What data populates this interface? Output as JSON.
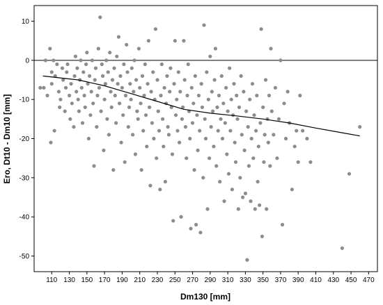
{
  "chart_data": {
    "type": "scatter",
    "xlabel": "Dm130 [mm]",
    "ylabel": "Ero, Dt10 - Dm10 [mm]",
    "xlim": [
      90,
      480
    ],
    "ylim": [
      -54,
      14
    ],
    "x_ticks": [
      110,
      130,
      150,
      170,
      190,
      210,
      230,
      250,
      270,
      290,
      310,
      330,
      350,
      370,
      390,
      410,
      430,
      450,
      470
    ],
    "x_tick_labels": [
      "110",
      "130",
      "150",
      "170",
      "190",
      "210",
      "230",
      "250",
      "270",
      "290",
      "310",
      "330",
      "350",
      "370",
      "390",
      "410",
      "430",
      "450",
      "470"
    ],
    "y_ticks": [
      10,
      0,
      -10,
      -20,
      -30,
      -40,
      -50
    ],
    "y_tick_labels": [
      "10",
      "0",
      "-10",
      "-20",
      "-30",
      "-40",
      "-50"
    ],
    "reference_line_y": 0,
    "grid": false,
    "legend": "none",
    "colors": {
      "points": "#8c8c8c",
      "trend": "#000000",
      "axes": "#000000"
    },
    "trend_line": {
      "x": [
        100,
        140,
        170,
        200,
        230,
        260,
        290,
        320,
        350,
        380,
        410,
        440,
        460
      ],
      "y": [
        -4,
        -5,
        -6.5,
        -8.5,
        -10.5,
        -12.5,
        -13.5,
        -14.2,
        -15,
        -16,
        -17.3,
        -18.5,
        -19.3
      ]
    },
    "points": [
      [
        97,
        -7
      ],
      [
        101,
        -7
      ],
      [
        103,
        0
      ],
      [
        105,
        -9
      ],
      [
        108,
        3
      ],
      [
        109,
        -21
      ],
      [
        110,
        -6
      ],
      [
        110,
        -3
      ],
      [
        112,
        0
      ],
      [
        113,
        -18
      ],
      [
        114,
        -4
      ],
      [
        116,
        -1
      ],
      [
        118,
        -8
      ],
      [
        119,
        -12
      ],
      [
        120,
        -10
      ],
      [
        122,
        -2
      ],
      [
        123,
        -5
      ],
      [
        125,
        -13
      ],
      [
        126,
        -7
      ],
      [
        127,
        -3
      ],
      [
        128,
        -1
      ],
      [
        130,
        -9
      ],
      [
        131,
        -15
      ],
      [
        132,
        -6
      ],
      [
        133,
        -11
      ],
      [
        135,
        -17
      ],
      [
        136,
        -4
      ],
      [
        137,
        1
      ],
      [
        138,
        -8
      ],
      [
        139,
        -2
      ],
      [
        140,
        -10
      ],
      [
        141,
        -13
      ],
      [
        142,
        -5
      ],
      [
        143,
        0
      ],
      [
        144,
        -7
      ],
      [
        145,
        -16
      ],
      [
        146,
        -3
      ],
      [
        147,
        -9
      ],
      [
        148,
        -12
      ],
      [
        149,
        -1
      ],
      [
        150,
        2
      ],
      [
        151,
        -6
      ],
      [
        152,
        -20
      ],
      [
        153,
        -4
      ],
      [
        154,
        -14
      ],
      [
        155,
        -8
      ],
      [
        156,
        0
      ],
      [
        157,
        -11
      ],
      [
        158,
        -27
      ],
      [
        159,
        -5
      ],
      [
        160,
        -2
      ],
      [
        161,
        -17
      ],
      [
        162,
        -9
      ],
      [
        163,
        3
      ],
      [
        164,
        -7
      ],
      [
        165,
        11
      ],
      [
        166,
        -13
      ],
      [
        167,
        -1
      ],
      [
        168,
        -4
      ],
      [
        169,
        -23
      ],
      [
        170,
        -10
      ],
      [
        171,
        -6
      ],
      [
        172,
        0
      ],
      [
        173,
        -15
      ],
      [
        174,
        -3
      ],
      [
        175,
        -19
      ],
      [
        176,
        2
      ],
      [
        177,
        -8
      ],
      [
        178,
        -12
      ],
      [
        179,
        -5
      ],
      [
        180,
        -28
      ],
      [
        181,
        -2
      ],
      [
        182,
        -9
      ],
      [
        183,
        -16
      ],
      [
        184,
        1
      ],
      [
        185,
        -6
      ],
      [
        186,
        6
      ],
      [
        187,
        -11
      ],
      [
        188,
        -4
      ],
      [
        189,
        -21
      ],
      [
        190,
        -7
      ],
      [
        191,
        -14
      ],
      [
        192,
        -1
      ],
      [
        193,
        -26
      ],
      [
        194,
        -9
      ],
      [
        195,
        4
      ],
      [
        196,
        -3
      ],
      [
        197,
        -17
      ],
      [
        198,
        -12
      ],
      [
        199,
        -6
      ],
      [
        200,
        -10
      ],
      [
        201,
        -2
      ],
      [
        202,
        -19
      ],
      [
        203,
        -8
      ],
      [
        204,
        0
      ],
      [
        205,
        -24
      ],
      [
        206,
        -5
      ],
      [
        207,
        -13
      ],
      [
        208,
        -15
      ],
      [
        209,
        3
      ],
      [
        210,
        -7
      ],
      [
        211,
        -11
      ],
      [
        212,
        -28
      ],
      [
        213,
        -4
      ],
      [
        214,
        -18
      ],
      [
        215,
        -9
      ],
      [
        216,
        -1
      ],
      [
        217,
        -14
      ],
      [
        218,
        -22
      ],
      [
        219,
        -6
      ],
      [
        220,
        5
      ],
      [
        221,
        -12
      ],
      [
        222,
        -32
      ],
      [
        223,
        -8
      ],
      [
        224,
        -16
      ],
      [
        225,
        -3
      ],
      [
        226,
        -20
      ],
      [
        227,
        -10
      ],
      [
        228,
        8
      ],
      [
        229,
        -25
      ],
      [
        230,
        -5
      ],
      [
        231,
        -13
      ],
      [
        232,
        -18
      ],
      [
        233,
        -33
      ],
      [
        234,
        -9
      ],
      [
        235,
        -1
      ],
      [
        236,
        -15
      ],
      [
        237,
        -22
      ],
      [
        238,
        -7
      ],
      [
        239,
        -31
      ],
      [
        240,
        -11
      ],
      [
        241,
        -4
      ],
      [
        242,
        -17
      ],
      [
        243,
        -19
      ],
      [
        244,
        -8
      ],
      [
        245,
        -2
      ],
      [
        246,
        -12
      ],
      [
        247,
        -24
      ],
      [
        248,
        -41
      ],
      [
        249,
        -6
      ],
      [
        250,
        5
      ],
      [
        251,
        -14
      ],
      [
        252,
        -10
      ],
      [
        253,
        -18
      ],
      [
        254,
        -3
      ],
      [
        255,
        -21
      ],
      [
        256,
        -8
      ],
      [
        257,
        -40
      ],
      [
        258,
        -15
      ],
      [
        259,
        -12
      ],
      [
        260,
        5
      ],
      [
        261,
        -5
      ],
      [
        262,
        -17
      ],
      [
        263,
        -25
      ],
      [
        264,
        -9
      ],
      [
        265,
        -1
      ],
      [
        266,
        -13
      ],
      [
        267,
        -20
      ],
      [
        268,
        -43
      ],
      [
        269,
        -7
      ],
      [
        270,
        -16
      ],
      [
        271,
        -11
      ],
      [
        272,
        -28
      ],
      [
        273,
        -4
      ],
      [
        274,
        -42
      ],
      [
        275,
        -14
      ],
      [
        276,
        -23
      ],
      [
        277,
        -9
      ],
      [
        278,
        -18
      ],
      [
        279,
        -44
      ],
      [
        280,
        -6
      ],
      [
        281,
        -12
      ],
      [
        282,
        -30
      ],
      [
        283,
        9
      ],
      [
        284,
        -15
      ],
      [
        285,
        -20
      ],
      [
        286,
        -3
      ],
      [
        287,
        -38
      ],
      [
        288,
        -10
      ],
      [
        289,
        -25
      ],
      [
        290,
        1
      ],
      [
        291,
        -17
      ],
      [
        292,
        -8
      ],
      [
        293,
        -13
      ],
      [
        294,
        -22
      ],
      [
        295,
        -5
      ],
      [
        296,
        3
      ],
      [
        297,
        -27
      ],
      [
        298,
        -12
      ],
      [
        299,
        -18
      ],
      [
        300,
        -9
      ],
      [
        301,
        -31
      ],
      [
        302,
        -15
      ],
      [
        303,
        -4
      ],
      [
        304,
        -20
      ],
      [
        305,
        -11
      ],
      [
        306,
        -36
      ],
      [
        307,
        -16
      ],
      [
        308,
        -7
      ],
      [
        309,
        -24
      ],
      [
        310,
        -13
      ],
      [
        311,
        -29
      ],
      [
        312,
        -2
      ],
      [
        313,
        -18
      ],
      [
        314,
        -10
      ],
      [
        315,
        -33
      ],
      [
        316,
        -14
      ],
      [
        317,
        -6
      ],
      [
        318,
        -21
      ],
      [
        319,
        -26
      ],
      [
        320,
        -9
      ],
      [
        321,
        -15
      ],
      [
        322,
        -38
      ],
      [
        323,
        -12
      ],
      [
        324,
        -30
      ],
      [
        325,
        -4
      ],
      [
        326,
        -19
      ],
      [
        327,
        -35
      ],
      [
        328,
        -8
      ],
      [
        329,
        -23
      ],
      [
        330,
        -34
      ],
      [
        331,
        -13
      ],
      [
        332,
        -51
      ],
      [
        333,
        -17
      ],
      [
        334,
        -27
      ],
      [
        335,
        -10
      ],
      [
        336,
        -36
      ],
      [
        337,
        -20
      ],
      [
        338,
        -6
      ],
      [
        339,
        -25
      ],
      [
        340,
        -14
      ],
      [
        341,
        -38
      ],
      [
        342,
        -18
      ],
      [
        343,
        -9
      ],
      [
        344,
        -31
      ],
      [
        345,
        -22
      ],
      [
        346,
        -37
      ],
      [
        347,
        -16
      ],
      [
        348,
        8
      ],
      [
        349,
        -45
      ],
      [
        350,
        -12
      ],
      [
        351,
        -26
      ],
      [
        352,
        -19
      ],
      [
        353,
        -5
      ],
      [
        354,
        -38
      ],
      [
        355,
        -15
      ],
      [
        356,
        -21
      ],
      [
        357,
        -9
      ],
      [
        358,
        -27
      ],
      [
        359,
        3
      ],
      [
        360,
        -13
      ],
      [
        362,
        -19
      ],
      [
        364,
        -7
      ],
      [
        366,
        -25
      ],
      [
        368,
        -15
      ],
      [
        370,
        0
      ],
      [
        372,
        -42
      ],
      [
        374,
        -11
      ],
      [
        376,
        -20
      ],
      [
        378,
        -8
      ],
      [
        380,
        -16
      ],
      [
        383,
        -33
      ],
      [
        386,
        -22
      ],
      [
        388,
        -18
      ],
      [
        390,
        -26
      ],
      [
        392,
        -9
      ],
      [
        395,
        -18
      ],
      [
        400,
        -20
      ],
      [
        404,
        -26
      ],
      [
        440,
        -48
      ],
      [
        448,
        -29
      ],
      [
        460,
        -17
      ]
    ]
  }
}
